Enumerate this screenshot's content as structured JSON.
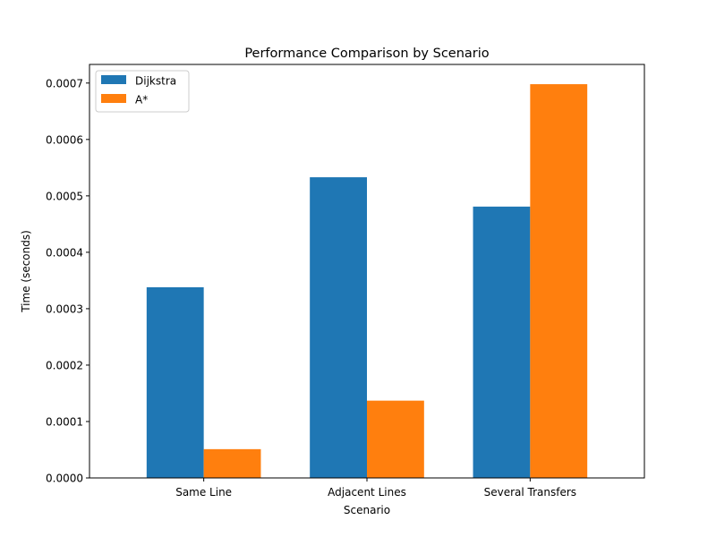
{
  "chart_data": {
    "type": "bar",
    "title": "Performance Comparison by Scenario",
    "xlabel": "Scenario",
    "ylabel": "Time (seconds)",
    "categories": [
      "Same Line",
      "Adjacent Lines",
      "Several Transfers"
    ],
    "series": [
      {
        "name": "Dijkstra",
        "color": "#1f77b4",
        "values": [
          0.000338,
          0.000533,
          0.000481
        ]
      },
      {
        "name": "A*",
        "color": "#ff7f0e",
        "values": [
          5.1e-05,
          0.000137,
          0.000698
        ]
      }
    ],
    "ylim": [
      0,
      0.000733
    ],
    "yticks": [
      "0.0000",
      "0.0001",
      "0.0002",
      "0.0003",
      "0.0004",
      "0.0005",
      "0.0006",
      "0.0007"
    ],
    "ytick_values": [
      0,
      0.0001,
      0.0002,
      0.0003,
      0.0004,
      0.0005,
      0.0006,
      0.0007
    ],
    "legend_position": "top-left",
    "grid": false
  }
}
